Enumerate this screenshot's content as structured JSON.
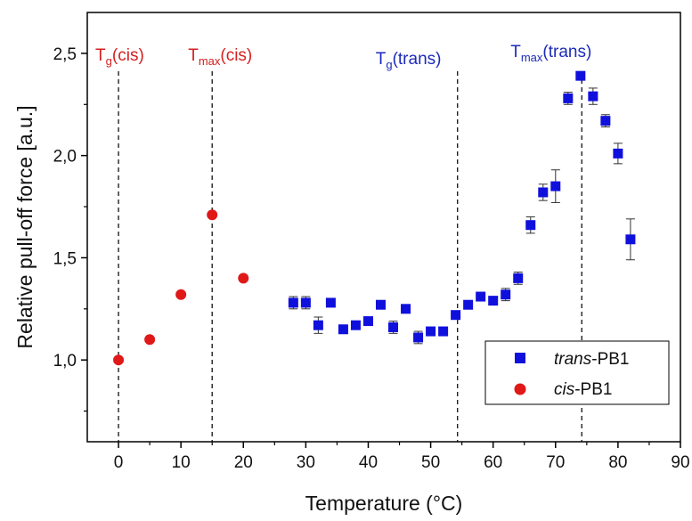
{
  "chart_data": {
    "type": "scatter",
    "xlabel": "Temperature (°C)",
    "ylabel": "Relative pull-off force [a.u.]",
    "xlim": [
      -5,
      90
    ],
    "ylim": [
      0.6,
      2.7
    ],
    "xticks": [
      0,
      10,
      20,
      30,
      40,
      50,
      60,
      70,
      80,
      90
    ],
    "xtick_labels": [
      "0",
      "10",
      "20",
      "30",
      "40",
      "50",
      "60",
      "70",
      "80",
      "90"
    ],
    "yticks": [
      1.0,
      1.5,
      2.0,
      2.5
    ],
    "ytick_labels": [
      "1,0",
      "1,5",
      "2,0",
      "2,5"
    ],
    "grid": false,
    "legend_position": "bottom-right",
    "series": [
      {
        "name_prefix": "trans",
        "name_suffix": "-PB1",
        "marker": "square",
        "color": "#1010dd",
        "x": [
          28,
          30,
          32,
          34,
          36,
          38,
          40,
          42,
          44,
          46,
          48,
          50,
          52,
          54,
          56,
          58,
          60,
          62,
          64,
          66,
          68,
          70,
          72,
          74,
          76,
          78,
          80,
          82
        ],
        "y": [
          1.28,
          1.28,
          1.17,
          1.28,
          1.15,
          1.17,
          1.19,
          1.27,
          1.16,
          1.25,
          1.11,
          1.14,
          1.14,
          1.22,
          1.27,
          1.31,
          1.29,
          1.32,
          1.4,
          1.66,
          1.82,
          1.85,
          2.28,
          2.39,
          2.29,
          2.17,
          2.01,
          1.59
        ],
        "yerr": [
          0.03,
          0.03,
          0.04,
          0.01,
          0.01,
          0.02,
          0.02,
          0.01,
          0.03,
          0.02,
          0.03,
          0.01,
          0.01,
          0.01,
          0.01,
          0.01,
          0.01,
          0.03,
          0.03,
          0.04,
          0.04,
          0.08,
          0.03,
          0.01,
          0.04,
          0.03,
          0.05,
          0.1
        ]
      },
      {
        "name_prefix": "cis",
        "name_suffix": "-PB1",
        "marker": "circle",
        "color": "#e01818",
        "x": [
          0,
          5,
          10,
          15,
          20
        ],
        "y": [
          1.0,
          1.1,
          1.32,
          1.71,
          1.4
        ],
        "yerr": [
          0,
          0,
          0,
          0,
          0
        ]
      }
    ],
    "vlines": [
      {
        "x": 0,
        "label_main": "T",
        "label_sub": "g",
        "label_rest": "(cis)",
        "color": "red",
        "style": "dashed"
      },
      {
        "x": 15,
        "label_main": "T",
        "label_sub": "max",
        "label_rest": "(cis)",
        "color": "red",
        "style": "dashed"
      },
      {
        "x": 54.3,
        "label_main": "T",
        "label_sub": "g",
        "label_rest": "(trans)",
        "color": "blue",
        "style": "dashed"
      },
      {
        "x": 74.2,
        "label_main": "T",
        "label_sub": "max",
        "label_rest": "(trans)",
        "color": "blue",
        "style": "dashed"
      }
    ]
  }
}
